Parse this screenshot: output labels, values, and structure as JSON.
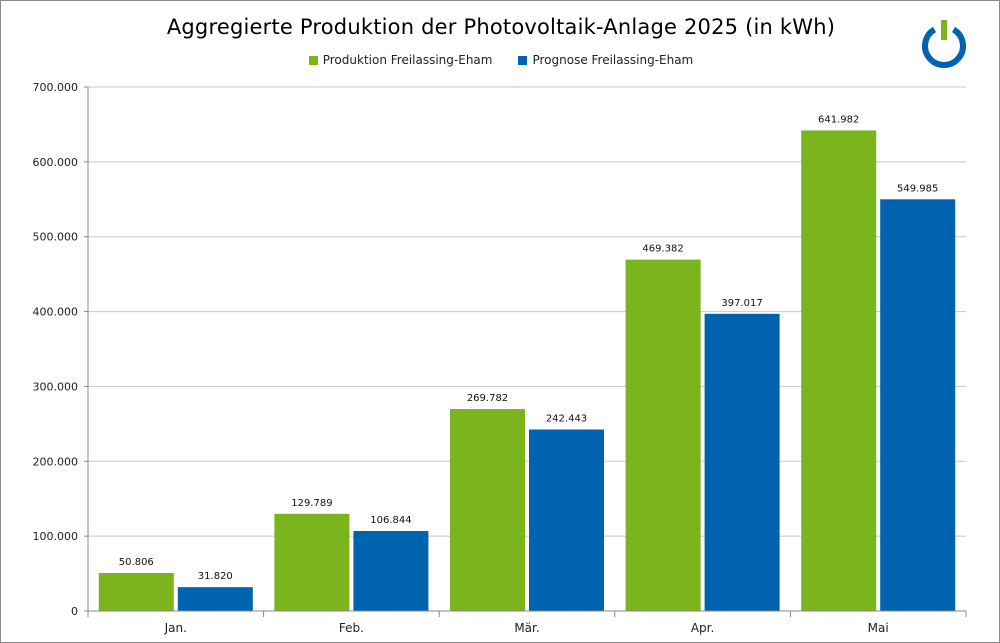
{
  "chart_data": {
    "type": "bar",
    "title": "Aggregierte Produktion der Photovoltaik-Anlage 2025 (in kWh)",
    "categories": [
      "Jan.",
      "Feb.",
      "Mär.",
      "Apr.",
      "Mai"
    ],
    "series": [
      {
        "name": "Produktion Freilassing-Eham",
        "color": "#7ab51d",
        "values": [
          50806,
          129789,
          269782,
          469382,
          641982
        ],
        "labels": [
          "50.806",
          "129.789",
          "269.782",
          "469.382",
          "641.982"
        ]
      },
      {
        "name": "Prognose Freilassing-Eham",
        "color": "#0063b0",
        "values": [
          31820,
          106844,
          242443,
          397017,
          549985
        ],
        "labels": [
          "31.820",
          "106.844",
          "242.443",
          "397.017",
          "549.985"
        ]
      }
    ],
    "ylim": [
      0,
      700000
    ],
    "yticks": [
      0,
      100000,
      200000,
      300000,
      400000,
      500000,
      600000,
      700000
    ],
    "ytick_labels": [
      "0",
      "100.000",
      "200.000",
      "300.000",
      "400.000",
      "500.000",
      "600.000",
      "700.000"
    ],
    "grid": true,
    "legend_position": "top-center"
  },
  "logo": {
    "name": "power-logo-icon",
    "ring_color": "#0063b0",
    "bar_color": "#7ab51d"
  }
}
